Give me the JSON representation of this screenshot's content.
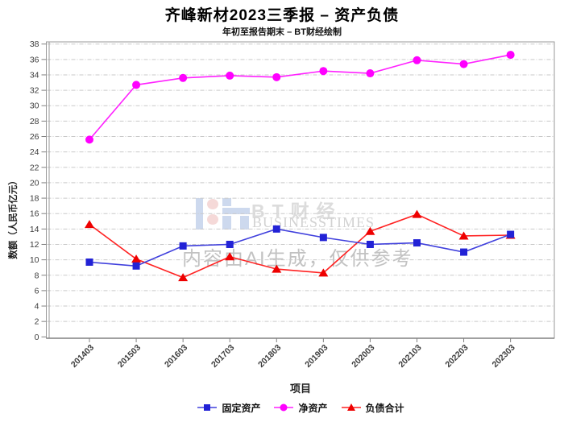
{
  "title": "齐峰新材2023三季报 – 资产负债",
  "subtitle": "年初至报告期末 – BT财经绘制",
  "watermark": {
    "logo_text": "BT财经",
    "logo_sub": "BUSINESSTIMES",
    "ai_note": "内容由AI生成，仅供参考"
  },
  "chart_data": {
    "type": "line",
    "title": "齐峰新材2023三季报 – 资产负债",
    "subtitle": "年初至报告期末 – BT财经绘制",
    "categories": [
      "201403",
      "201503",
      "201603",
      "201703",
      "201803",
      "201903",
      "202003",
      "202103",
      "202203",
      "202303"
    ],
    "series": [
      {
        "name": "固定资产",
        "marker": "square",
        "color": "#2222d6",
        "line_color": "#4040dd",
        "values": [
          9.7,
          9.2,
          11.8,
          12.0,
          14.0,
          12.9,
          12.0,
          12.2,
          11.0,
          13.3
        ]
      },
      {
        "name": "净资产",
        "marker": "circle",
        "color": "#ff00ff",
        "line_color": "#ff22ff",
        "values": [
          25.6,
          32.7,
          33.6,
          33.9,
          33.7,
          34.5,
          34.2,
          35.9,
          35.4,
          36.6
        ]
      },
      {
        "name": "负债合计",
        "marker": "triangle",
        "color": "#ee0000",
        "line_color": "#ff2222",
        "values": [
          14.6,
          10.1,
          7.7,
          10.4,
          8.8,
          8.3,
          13.7,
          15.9,
          13.1,
          13.2
        ]
      }
    ],
    "xlabel": "项目",
    "ylabel": "数额（人民币亿元）",
    "ylim": [
      0,
      38
    ],
    "ytick_step": 2,
    "grid": true,
    "legend_position": "bottom",
    "colors": {
      "grid_line": "#c9c9c9",
      "plot_border": "#9a9a9a",
      "axis_line": "#808080",
      "tick_label": "#3c3c3c"
    }
  }
}
